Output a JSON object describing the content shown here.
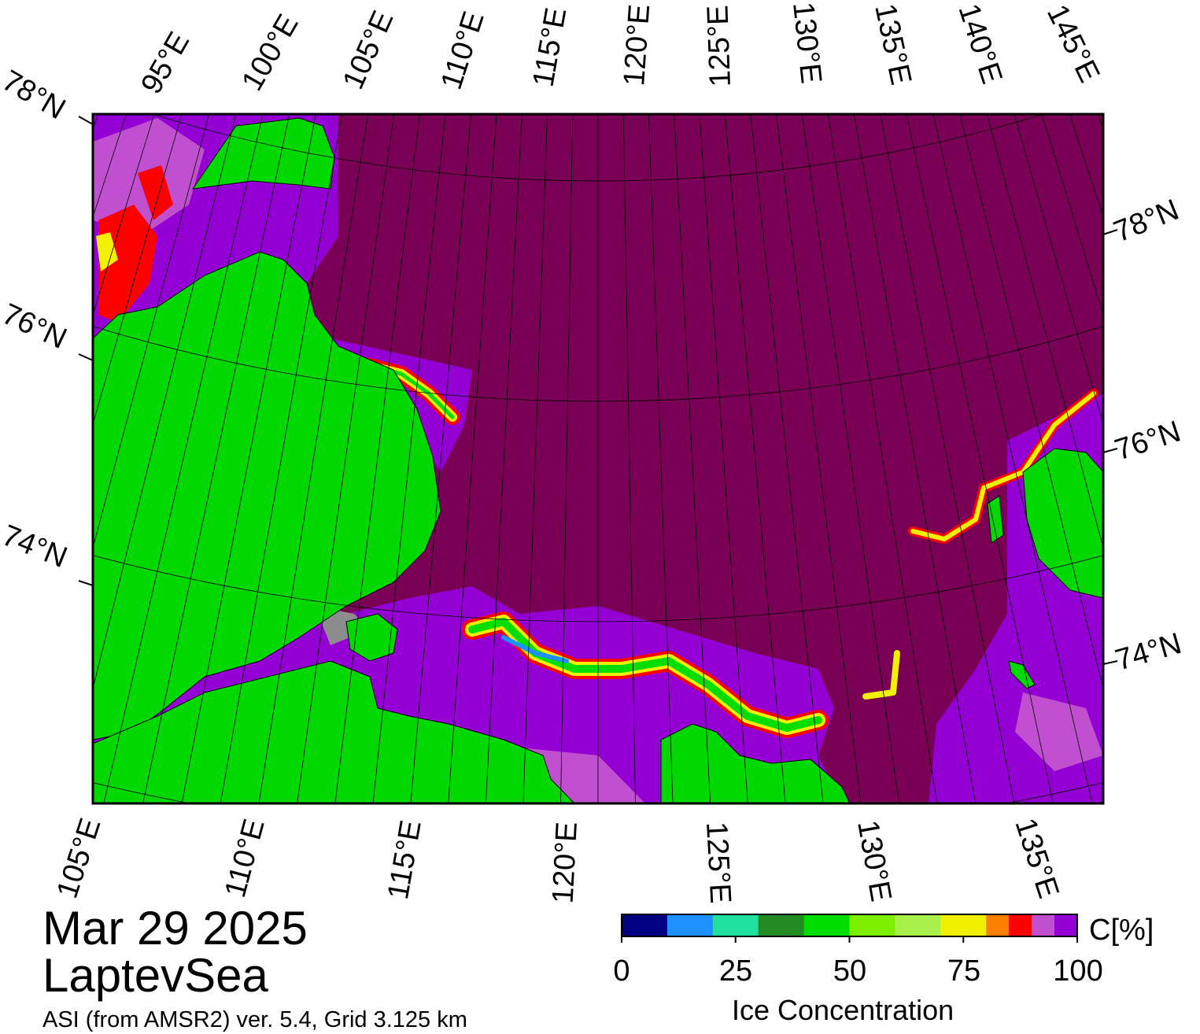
{
  "map": {
    "date": "Mar 29 2025",
    "region": "LaptevSea",
    "product": "ASI (from AMSR2) ver. 5.4,  Grid 3.125 km",
    "colors": {
      "open_water": "#7a0055",
      "land": "#00d800",
      "coast_mask": "#8c8c8c",
      "frame": "#000000"
    },
    "top_lon_labels": [
      "95°E",
      "100°E",
      "105°E",
      "110°E",
      "115°E",
      "120°E",
      "125°E",
      "130°E",
      "135°E",
      "140°E",
      "145°E"
    ],
    "bottom_lon_labels": [
      "105°E",
      "110°E",
      "115°E",
      "120°E",
      "125°E",
      "130°E",
      "135°E"
    ],
    "left_lat_labels": [
      "78°N",
      "76°N",
      "74°N"
    ],
    "right_lat_labels": [
      "78°N",
      "76°N",
      "74°N"
    ]
  },
  "colorbar": {
    "title": "Ice Concentration",
    "unit": "C[%]",
    "tick_labels": [
      "0",
      "25",
      "50",
      "75",
      "100"
    ],
    "min": 0,
    "max": 100,
    "step": 10,
    "colors": [
      "#000080",
      "#1e90ff",
      "#20e0a0",
      "#228b22",
      "#00dd00",
      "#7cee00",
      "#aaf04a",
      "#f0f000",
      "#ff8000",
      "#ff0000",
      "#c050d0",
      "#9400d3"
    ]
  }
}
